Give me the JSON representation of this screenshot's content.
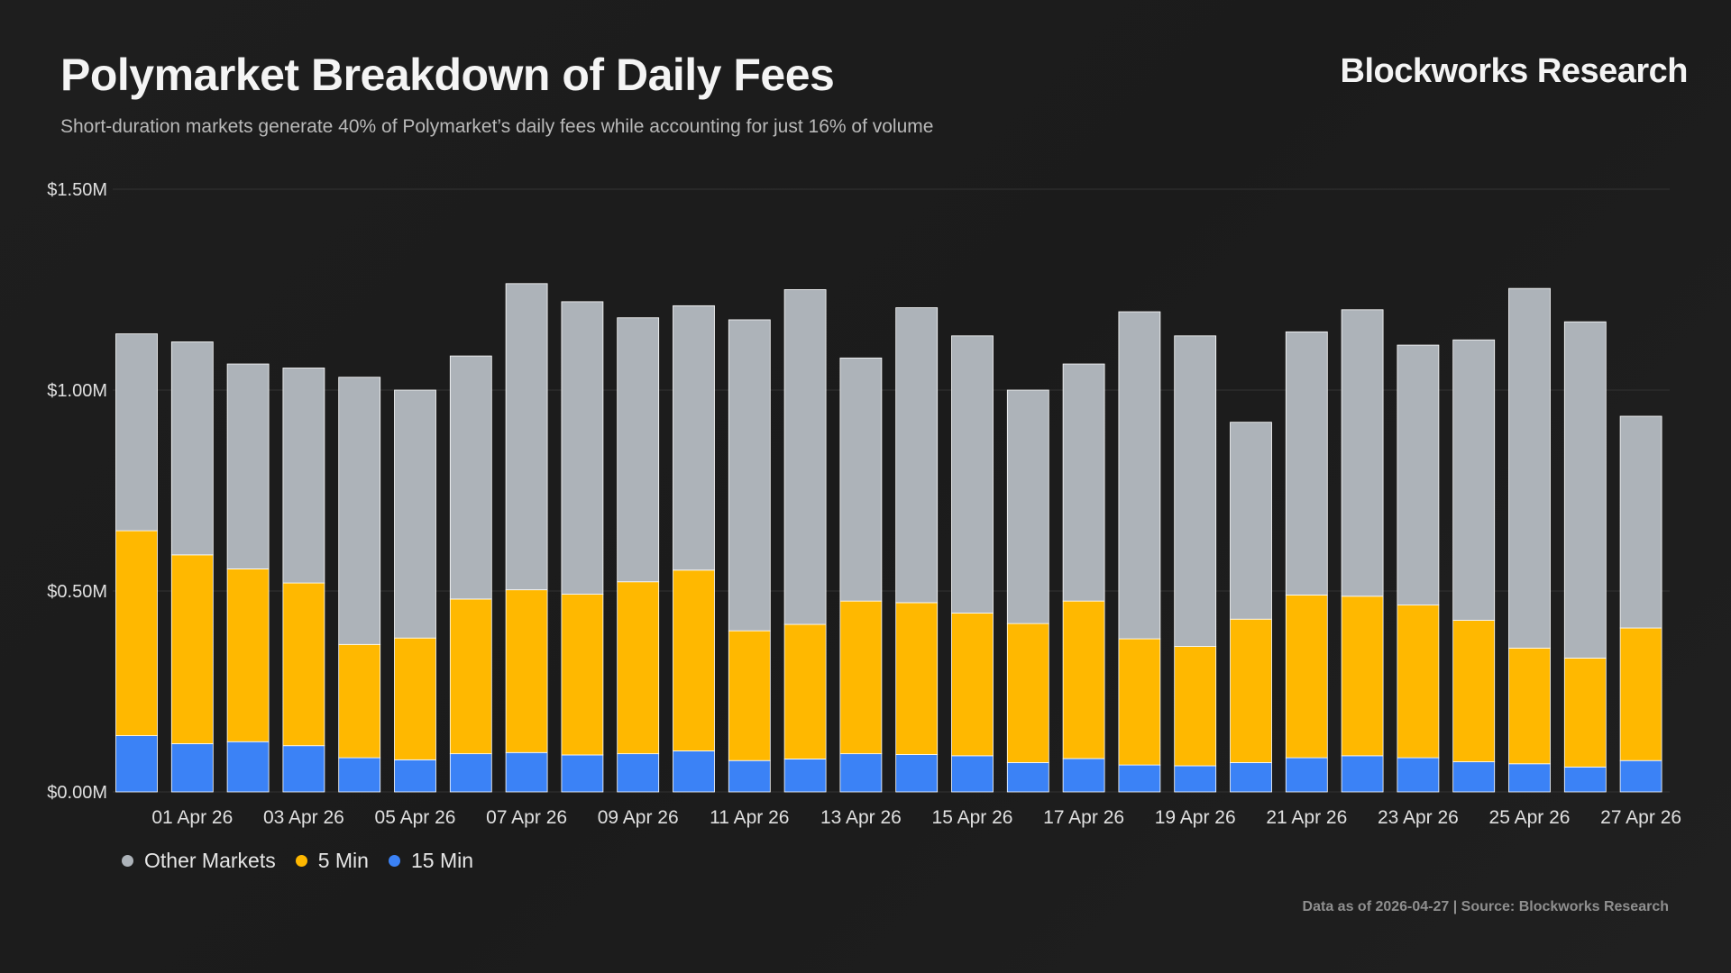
{
  "header": {
    "title": "Polymarket Breakdown of Daily Fees",
    "subtitle": "Short-duration markets generate 40% of Polymarket’s daily fees while accounting for just 16% of volume",
    "brand": "Blockworks Research"
  },
  "footer": {
    "text": "Data as of 2026-04-27 | Source: Blockworks Research"
  },
  "colors": {
    "other": "#adb3b9",
    "five_min": "#ffb800",
    "fifteen_min": "#3b82f6",
    "grid": "#333333",
    "tick": "#e0e0e0"
  },
  "chart_data": {
    "type": "bar",
    "stacked": true,
    "title": "Polymarket Breakdown of Daily Fees",
    "xlabel": "",
    "ylabel": "",
    "ylim": [
      0,
      1.5
    ],
    "grid": true,
    "legend_position": "bottom-left",
    "yticks": [
      {
        "value": 0,
        "label": "$0.00M"
      },
      {
        "value": 0.5,
        "label": "$0.50M"
      },
      {
        "value": 1.0,
        "label": "$1.00M"
      },
      {
        "value": 1.5,
        "label": "$1.50M"
      }
    ],
    "categories": [
      "31 Mar 26",
      "01 Apr 26",
      "02 Apr 26",
      "03 Apr 26",
      "04 Apr 26",
      "05 Apr 26",
      "06 Apr 26",
      "07 Apr 26",
      "08 Apr 26",
      "09 Apr 26",
      "10 Apr 26",
      "11 Apr 26",
      "12 Apr 26",
      "13 Apr 26",
      "14 Apr 26",
      "15 Apr 26",
      "16 Apr 26",
      "17 Apr 26",
      "18 Apr 26",
      "19 Apr 26",
      "20 Apr 26",
      "21 Apr 26",
      "22 Apr 26",
      "23 Apr 26",
      "24 Apr 26",
      "25 Apr 26",
      "26 Apr 26",
      "27 Apr 26"
    ],
    "xtick_labels": [
      "01 Apr 26",
      "03 Apr 26",
      "05 Apr 26",
      "07 Apr 26",
      "09 Apr 26",
      "11 Apr 26",
      "13 Apr 26",
      "15 Apr 26",
      "17 Apr 26",
      "19 Apr 26",
      "21 Apr 26",
      "23 Apr 26",
      "25 Apr 26",
      "27 Apr 26"
    ],
    "series": [
      {
        "name": "15 Min",
        "values": [
          0.14,
          0.12,
          0.125,
          0.115,
          0.085,
          0.08,
          0.095,
          0.098,
          0.092,
          0.095,
          0.102,
          0.078,
          0.082,
          0.095,
          0.093,
          0.09,
          0.073,
          0.083,
          0.067,
          0.065,
          0.073,
          0.085,
          0.09,
          0.085,
          0.075,
          0.07,
          0.062,
          0.078
        ]
      },
      {
        "name": "5 Min",
        "values": [
          0.51,
          0.47,
          0.43,
          0.405,
          0.282,
          0.303,
          0.385,
          0.405,
          0.4,
          0.428,
          0.45,
          0.323,
          0.335,
          0.38,
          0.378,
          0.355,
          0.346,
          0.392,
          0.314,
          0.297,
          0.357,
          0.405,
          0.397,
          0.38,
          0.352,
          0.288,
          0.271,
          0.33
        ]
      },
      {
        "name": "Other Markets",
        "values": [
          0.49,
          0.53,
          0.51,
          0.535,
          0.665,
          0.617,
          0.605,
          0.762,
          0.728,
          0.657,
          0.658,
          0.774,
          0.833,
          0.605,
          0.734,
          0.69,
          0.581,
          0.59,
          0.814,
          0.773,
          0.49,
          0.655,
          0.713,
          0.647,
          0.698,
          0.895,
          0.837,
          0.527
        ]
      }
    ]
  },
  "legend": {
    "items": [
      {
        "label": "Other Markets",
        "color": "#adb3b9"
      },
      {
        "label": "5 Min",
        "color": "#ffb800"
      },
      {
        "label": "15 Min",
        "color": "#3b82f6"
      }
    ]
  }
}
